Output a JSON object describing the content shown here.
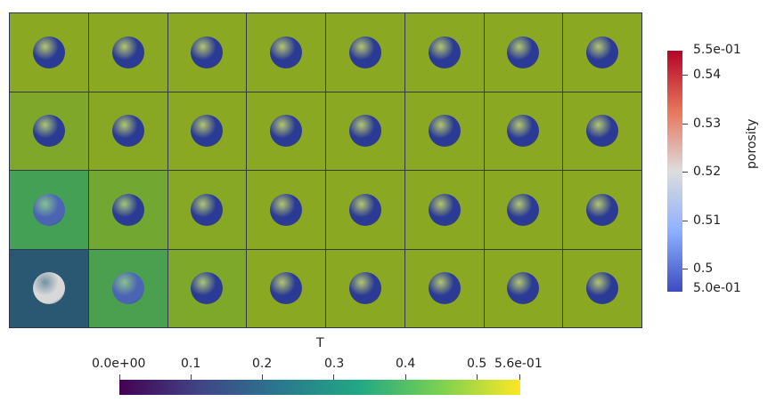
{
  "scalar_bar_porosity": {
    "title": "porosity",
    "max_label": "5.5e-01",
    "min_label": "5.0e-01",
    "tick_labels": [
      "0.54",
      "0.53",
      "0.52",
      "0.51",
      "0.5"
    ],
    "colormap": [
      "#b40426",
      "#dddddd",
      "#3b4cc0"
    ]
  },
  "scalar_bar_T": {
    "title": "T",
    "min_label": "0.0e+00",
    "max_label": "5.6e-01",
    "tick_labels": [
      "0.1",
      "0.2",
      "0.3",
      "0.4",
      "0.5"
    ],
    "colormap": [
      "#440154",
      "#2a788e",
      "#22a884",
      "#fde725"
    ]
  },
  "grid": {
    "rows": 4,
    "cols": 8,
    "cell_colors": [
      [
        "#8aa822",
        "#8aa822",
        "#8aa822",
        "#8aa822",
        "#8aa822",
        "#8aa822",
        "#8aa822",
        "#8aa822"
      ],
      [
        "#7fa82a",
        "#88a823",
        "#8aa822",
        "#8aa822",
        "#8aa822",
        "#8aa822",
        "#8aa822",
        "#8aa822"
      ],
      [
        "#44a054",
        "#72a832",
        "#86a824",
        "#8aa822",
        "#8aa822",
        "#8aa822",
        "#8aa822",
        "#8aa822"
      ],
      [
        "#2a5872",
        "#4aa04e",
        "#7ea82a",
        "#8aa822",
        "#8aa822",
        "#8aa822",
        "#8aa822",
        "#8aa822"
      ]
    ],
    "sphere_colors": [
      [
        "#2b3a94",
        "#2b3a94",
        "#2b3a94",
        "#2b3a94",
        "#2b3a94",
        "#2b3a94",
        "#2b3a94",
        "#2b3a94"
      ],
      [
        "#2b3a94",
        "#2b3a94",
        "#2b3a94",
        "#2b3a94",
        "#2b3a94",
        "#2b3a94",
        "#2b3a94",
        "#2b3a94"
      ],
      [
        "#4c64b4",
        "#2b3a94",
        "#2b3a94",
        "#2b3a94",
        "#2b3a94",
        "#2b3a94",
        "#2b3a94",
        "#2b3a94"
      ],
      [
        "#d8d8d8",
        "#4c64b4",
        "#2b3a94",
        "#2b3a94",
        "#2b3a94",
        "#2b3a94",
        "#2b3a94",
        "#2b3a94"
      ]
    ]
  }
}
